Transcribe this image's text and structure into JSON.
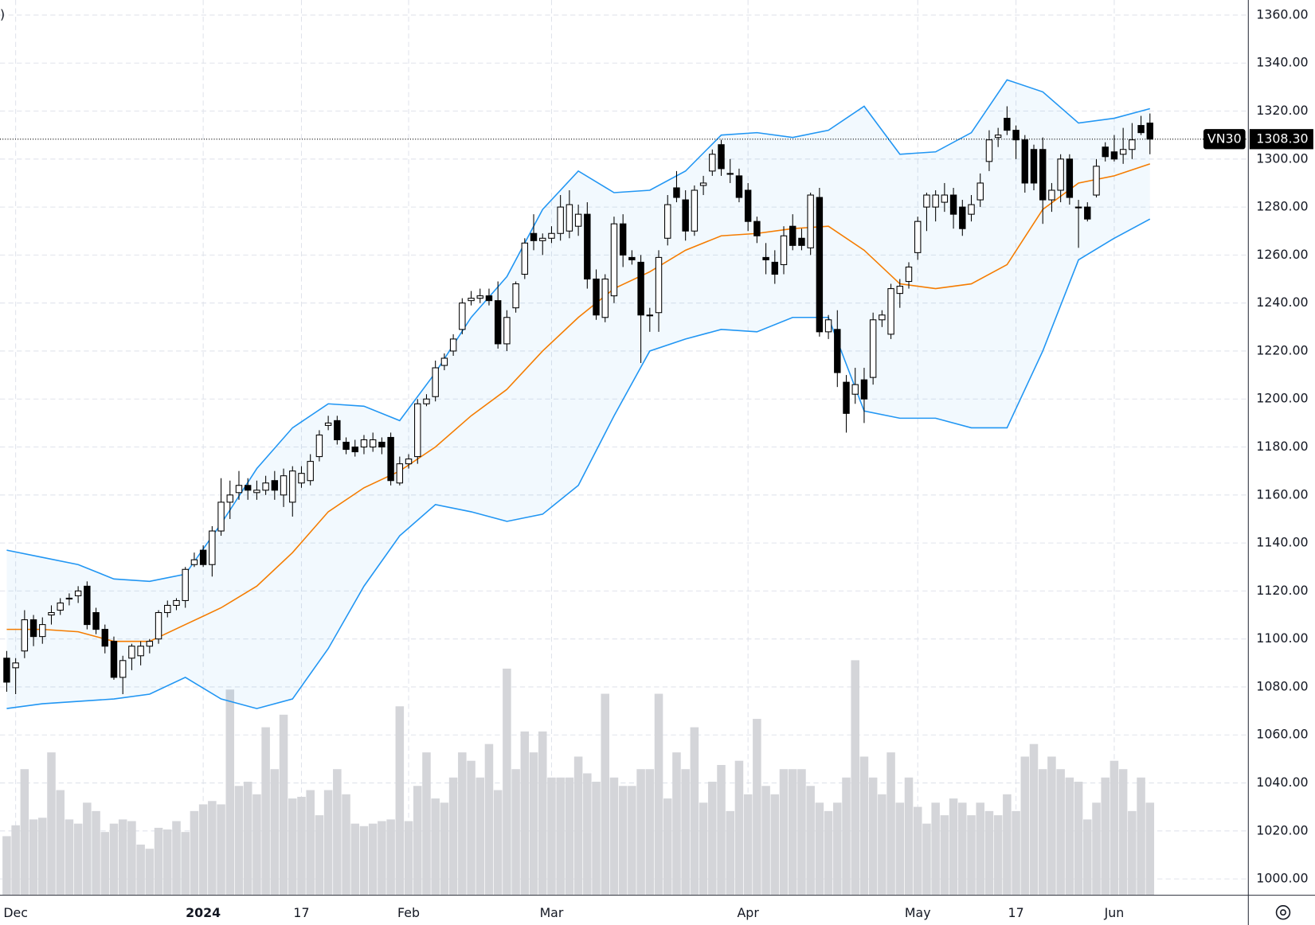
{
  "chart_data": {
    "type": "candlestick",
    "legend_fragment": ")",
    "ylim": [
      1000,
      1360
    ],
    "yticks": [
      {
        "value": 1000,
        "label": "1000.00"
      },
      {
        "value": 1020,
        "label": "1020.00"
      },
      {
        "value": 1040,
        "label": "1040.00"
      },
      {
        "value": 1060,
        "label": "1060.00"
      },
      {
        "value": 1080,
        "label": "1080.00"
      },
      {
        "value": 1100,
        "label": "1100.00"
      },
      {
        "value": 1120,
        "label": "1120.00"
      },
      {
        "value": 1140,
        "label": "1140.00"
      },
      {
        "value": 1160,
        "label": "1160.00"
      },
      {
        "value": 1180,
        "label": "1180.00"
      },
      {
        "value": 1200,
        "label": "1200.00"
      },
      {
        "value": 1220,
        "label": "1220.00"
      },
      {
        "value": 1240,
        "label": "1240.00"
      },
      {
        "value": 1260,
        "label": "1260.00"
      },
      {
        "value": 1280,
        "label": "1280.00"
      },
      {
        "value": 1300,
        "label": "1300.00"
      },
      {
        "value": 1320,
        "label": "1320.00"
      },
      {
        "value": 1340,
        "label": "1340.00"
      },
      {
        "value": 1360,
        "label": "1360.00"
      }
    ],
    "xticks": [
      {
        "value": 1,
        "label": "Dec"
      },
      {
        "value": 22,
        "label": "2024"
      },
      {
        "value": 33,
        "label": "17"
      },
      {
        "value": 45,
        "label": "Feb"
      },
      {
        "value": 61,
        "label": "Mar"
      },
      {
        "value": 83,
        "label": "Apr"
      },
      {
        "value": 102,
        "label": "May"
      },
      {
        "value": 113,
        "label": "17"
      },
      {
        "value": 124,
        "label": "Jun"
      }
    ],
    "grid": true,
    "up_color": "#ffffff",
    "down_color": "#000000",
    "wick_color": "#000000",
    "volume_color": "#d4d5d9",
    "ohlc": [
      [
        1092,
        1095,
        1078,
        1082
      ],
      [
        1088,
        1092,
        1077,
        1090
      ],
      [
        1095,
        1112,
        1092,
        1108
      ],
      [
        1108,
        1110,
        1097,
        1101
      ],
      [
        1101,
        1109,
        1098,
        1106
      ],
      [
        1110,
        1114,
        1106,
        1111
      ],
      [
        1112,
        1117,
        1110,
        1115
      ],
      [
        1117,
        1119,
        1114,
        1117
      ],
      [
        1118,
        1122,
        1115,
        1120
      ],
      [
        1122,
        1124,
        1104,
        1106
      ],
      [
        1111,
        1113,
        1102,
        1104
      ],
      [
        1104,
        1106,
        1094,
        1097
      ],
      [
        1099,
        1101,
        1083,
        1084
      ],
      [
        1084,
        1093,
        1077,
        1091
      ],
      [
        1092,
        1098,
        1087,
        1097
      ],
      [
        1093,
        1099,
        1089,
        1097
      ],
      [
        1097,
        1100,
        1094,
        1099
      ],
      [
        1100,
        1112,
        1098,
        1111
      ],
      [
        1111,
        1116,
        1109,
        1114
      ],
      [
        1114,
        1117,
        1112,
        1116
      ],
      [
        1116,
        1130,
        1113,
        1129
      ],
      [
        1131,
        1136,
        1130,
        1133
      ],
      [
        1137,
        1139,
        1130,
        1131
      ],
      [
        1131,
        1147,
        1126,
        1145
      ],
      [
        1145,
        1167,
        1143,
        1157
      ],
      [
        1157,
        1166,
        1150,
        1160
      ],
      [
        1161,
        1170,
        1158,
        1164
      ],
      [
        1164,
        1167,
        1158,
        1162
      ],
      [
        1161,
        1166,
        1158,
        1162
      ],
      [
        1162,
        1168,
        1160,
        1165
      ],
      [
        1166,
        1170,
        1158,
        1162
      ],
      [
        1160,
        1171,
        1155,
        1168
      ],
      [
        1157,
        1172,
        1151,
        1170
      ],
      [
        1165,
        1172,
        1163,
        1169
      ],
      [
        1166,
        1177,
        1164,
        1174
      ],
      [
        1176,
        1187,
        1174,
        1185
      ],
      [
        1189,
        1193,
        1187,
        1190
      ],
      [
        1191,
        1193,
        1181,
        1183
      ],
      [
        1182,
        1184,
        1177,
        1179
      ],
      [
        1180,
        1183,
        1176,
        1178
      ],
      [
        1180,
        1185,
        1177,
        1183
      ],
      [
        1180,
        1186,
        1178,
        1183
      ],
      [
        1182,
        1184,
        1177,
        1180
      ],
      [
        1184,
        1186,
        1164,
        1166
      ],
      [
        1165,
        1176,
        1164,
        1173
      ],
      [
        1173,
        1177,
        1171,
        1175
      ],
      [
        1176,
        1200,
        1173,
        1198
      ],
      [
        1198,
        1202,
        1197,
        1200
      ],
      [
        1201,
        1216,
        1199,
        1213
      ],
      [
        1214,
        1219,
        1212,
        1217
      ],
      [
        1220,
        1227,
        1218,
        1225
      ],
      [
        1229,
        1242,
        1227,
        1240
      ],
      [
        1241,
        1245,
        1239,
        1242
      ],
      [
        1242,
        1246,
        1240,
        1243
      ],
      [
        1243,
        1246,
        1239,
        1241
      ],
      [
        1241,
        1249,
        1221,
        1223
      ],
      [
        1223,
        1237,
        1220,
        1234
      ],
      [
        1238,
        1249,
        1236,
        1248
      ],
      [
        1252,
        1267,
        1250,
        1265
      ],
      [
        1269,
        1277,
        1262,
        1266
      ],
      [
        1266,
        1269,
        1260,
        1267
      ],
      [
        1267,
        1272,
        1265,
        1269
      ],
      [
        1269,
        1285,
        1266,
        1280
      ],
      [
        1270,
        1287,
        1267,
        1281
      ],
      [
        1272,
        1281,
        1268,
        1277
      ],
      [
        1277,
        1282,
        1246,
        1250
      ],
      [
        1250,
        1254,
        1233,
        1235
      ],
      [
        1234,
        1252,
        1232,
        1250
      ],
      [
        1243,
        1276,
        1240,
        1273
      ],
      [
        1273,
        1277,
        1255,
        1260
      ],
      [
        1259,
        1262,
        1256,
        1258
      ],
      [
        1257,
        1260,
        1215,
        1235
      ],
      [
        1235,
        1238,
        1228,
        1235
      ],
      [
        1236,
        1262,
        1228,
        1259
      ],
      [
        1267,
        1285,
        1264,
        1281
      ],
      [
        1288,
        1295,
        1282,
        1284
      ],
      [
        1283,
        1287,
        1266,
        1270
      ],
      [
        1270,
        1289,
        1268,
        1287
      ],
      [
        1289,
        1293,
        1285,
        1290
      ],
      [
        1295,
        1304,
        1293,
        1302
      ],
      [
        1306,
        1308,
        1293,
        1296
      ],
      [
        1294,
        1300,
        1290,
        1294
      ],
      [
        1293,
        1296,
        1282,
        1284
      ],
      [
        1287,
        1290,
        1270,
        1274
      ],
      [
        1274,
        1276,
        1265,
        1268
      ],
      [
        1259,
        1265,
        1252,
        1258
      ],
      [
        1257,
        1262,
        1248,
        1252
      ],
      [
        1256,
        1272,
        1252,
        1268
      ],
      [
        1272,
        1277,
        1262,
        1264
      ],
      [
        1267,
        1271,
        1262,
        1264
      ],
      [
        1263,
        1286,
        1260,
        1285
      ],
      [
        1284,
        1288,
        1226,
        1228
      ],
      [
        1228,
        1235,
        1225,
        1233
      ],
      [
        1229,
        1237,
        1205,
        1211
      ],
      [
        1207,
        1210,
        1186,
        1194
      ],
      [
        1202,
        1213,
        1198,
        1206
      ],
      [
        1208,
        1213,
        1190,
        1200
      ],
      [
        1209,
        1236,
        1206,
        1233
      ],
      [
        1233,
        1237,
        1230,
        1235
      ],
      [
        1227,
        1248,
        1225,
        1246
      ],
      [
        1244,
        1250,
        1238,
        1247
      ],
      [
        1249,
        1257,
        1246,
        1255
      ],
      [
        1261,
        1276,
        1258,
        1274
      ],
      [
        1280,
        1286,
        1270,
        1285
      ],
      [
        1280,
        1287,
        1274,
        1285
      ],
      [
        1282,
        1290,
        1278,
        1285
      ],
      [
        1285,
        1288,
        1271,
        1277
      ],
      [
        1280,
        1283,
        1268,
        1271
      ],
      [
        1277,
        1285,
        1274,
        1281
      ],
      [
        1283,
        1294,
        1280,
        1290
      ],
      [
        1299,
        1312,
        1295,
        1308
      ],
      [
        1309,
        1313,
        1305,
        1310
      ],
      [
        1317,
        1322,
        1310,
        1312
      ],
      [
        1312,
        1314,
        1300,
        1308
      ],
      [
        1308,
        1310,
        1286,
        1290
      ],
      [
        1304,
        1306,
        1287,
        1290
      ],
      [
        1304,
        1309,
        1273,
        1283
      ],
      [
        1283,
        1290,
        1278,
        1287
      ],
      [
        1287,
        1302,
        1282,
        1300
      ],
      [
        1300,
        1302,
        1281,
        1284
      ],
      [
        1280,
        1283,
        1263,
        1280
      ],
      [
        1280,
        1282,
        1274,
        1275
      ],
      [
        1285,
        1300,
        1284,
        1297
      ],
      [
        1305,
        1307,
        1299,
        1301
      ],
      [
        1303,
        1310,
        1299,
        1300
      ],
      [
        1302,
        1313,
        1298,
        1304
      ],
      [
        1304,
        1315,
        1300,
        1308
      ],
      [
        1314,
        1318,
        1310,
        1311
      ],
      [
        1315,
        1319,
        1302,
        1308.3
      ]
    ],
    "volume": [
      70,
      83,
      150,
      90,
      92,
      170,
      125,
      90,
      85,
      110,
      100,
      75,
      85,
      90,
      88,
      60,
      55,
      80,
      78,
      88,
      75,
      100,
      108,
      112,
      108,
      245,
      130,
      135,
      120,
      200,
      150,
      215,
      115,
      117,
      125,
      95,
      125,
      150,
      120,
      85,
      82,
      85,
      88,
      90,
      225,
      88,
      130,
      170,
      115,
      110,
      140,
      170,
      160,
      140,
      180,
      125,
      270,
      150,
      195,
      170,
      195,
      140,
      140,
      140,
      165,
      145,
      135,
      240,
      140,
      130,
      130,
      150,
      150,
      240,
      115,
      170,
      150,
      200,
      110,
      135,
      155,
      100,
      160,
      120,
      210,
      130,
      120,
      150,
      150,
      150,
      130,
      110,
      100,
      110,
      140,
      280,
      165,
      140,
      120,
      170,
      110,
      140,
      105,
      85,
      110,
      95,
      115,
      110,
      95,
      110,
      100,
      95,
      120,
      100,
      165,
      180,
      150,
      165,
      150,
      140,
      135,
      90,
      110,
      140,
      160,
      150,
      100,
      140,
      110
    ],
    "bands": {
      "x": [
        0,
        4,
        8,
        12,
        16,
        20,
        24,
        28,
        32,
        36,
        40,
        44,
        48,
        52,
        56,
        60,
        64,
        68,
        72,
        76,
        80,
        84,
        88,
        92,
        96,
        100,
        104,
        108,
        112,
        116,
        120,
        124,
        128
      ],
      "upper": [
        1137,
        1134,
        1131,
        1125,
        1124,
        1127,
        1148,
        1171,
        1188,
        1198,
        1197,
        1191,
        1211,
        1234,
        1251,
        1279,
        1295,
        1286,
        1287,
        1295,
        1310,
        1311,
        1309,
        1312,
        1322,
        1302,
        1303,
        1311,
        1333,
        1328,
        1315,
        1317,
        1321
      ],
      "middle": [
        1104,
        1104,
        1103,
        1099,
        1099,
        1106,
        1113,
        1122,
        1136,
        1153,
        1163,
        1170,
        1180,
        1193,
        1204,
        1220,
        1234,
        1246,
        1253,
        1262,
        1268,
        1269,
        1271,
        1272,
        1262,
        1248,
        1246,
        1248,
        1256,
        1279,
        1290,
        1293,
        1298
      ],
      "lower": [
        1071,
        1073,
        1074,
        1075,
        1077,
        1084,
        1075,
        1071,
        1075,
        1096,
        1122,
        1143,
        1156,
        1153,
        1149,
        1152,
        1164,
        1193,
        1220,
        1225,
        1229,
        1228,
        1234,
        1234,
        1195,
        1192,
        1192,
        1188,
        1188,
        1220,
        1258,
        1267,
        1275
      ],
      "band_color": "#2196f3",
      "middle_color": "#f57c00",
      "fill_color": "#2196f3"
    },
    "last_price": {
      "symbol": "VN30",
      "value": 1308.3,
      "label": "1308.30"
    }
  }
}
